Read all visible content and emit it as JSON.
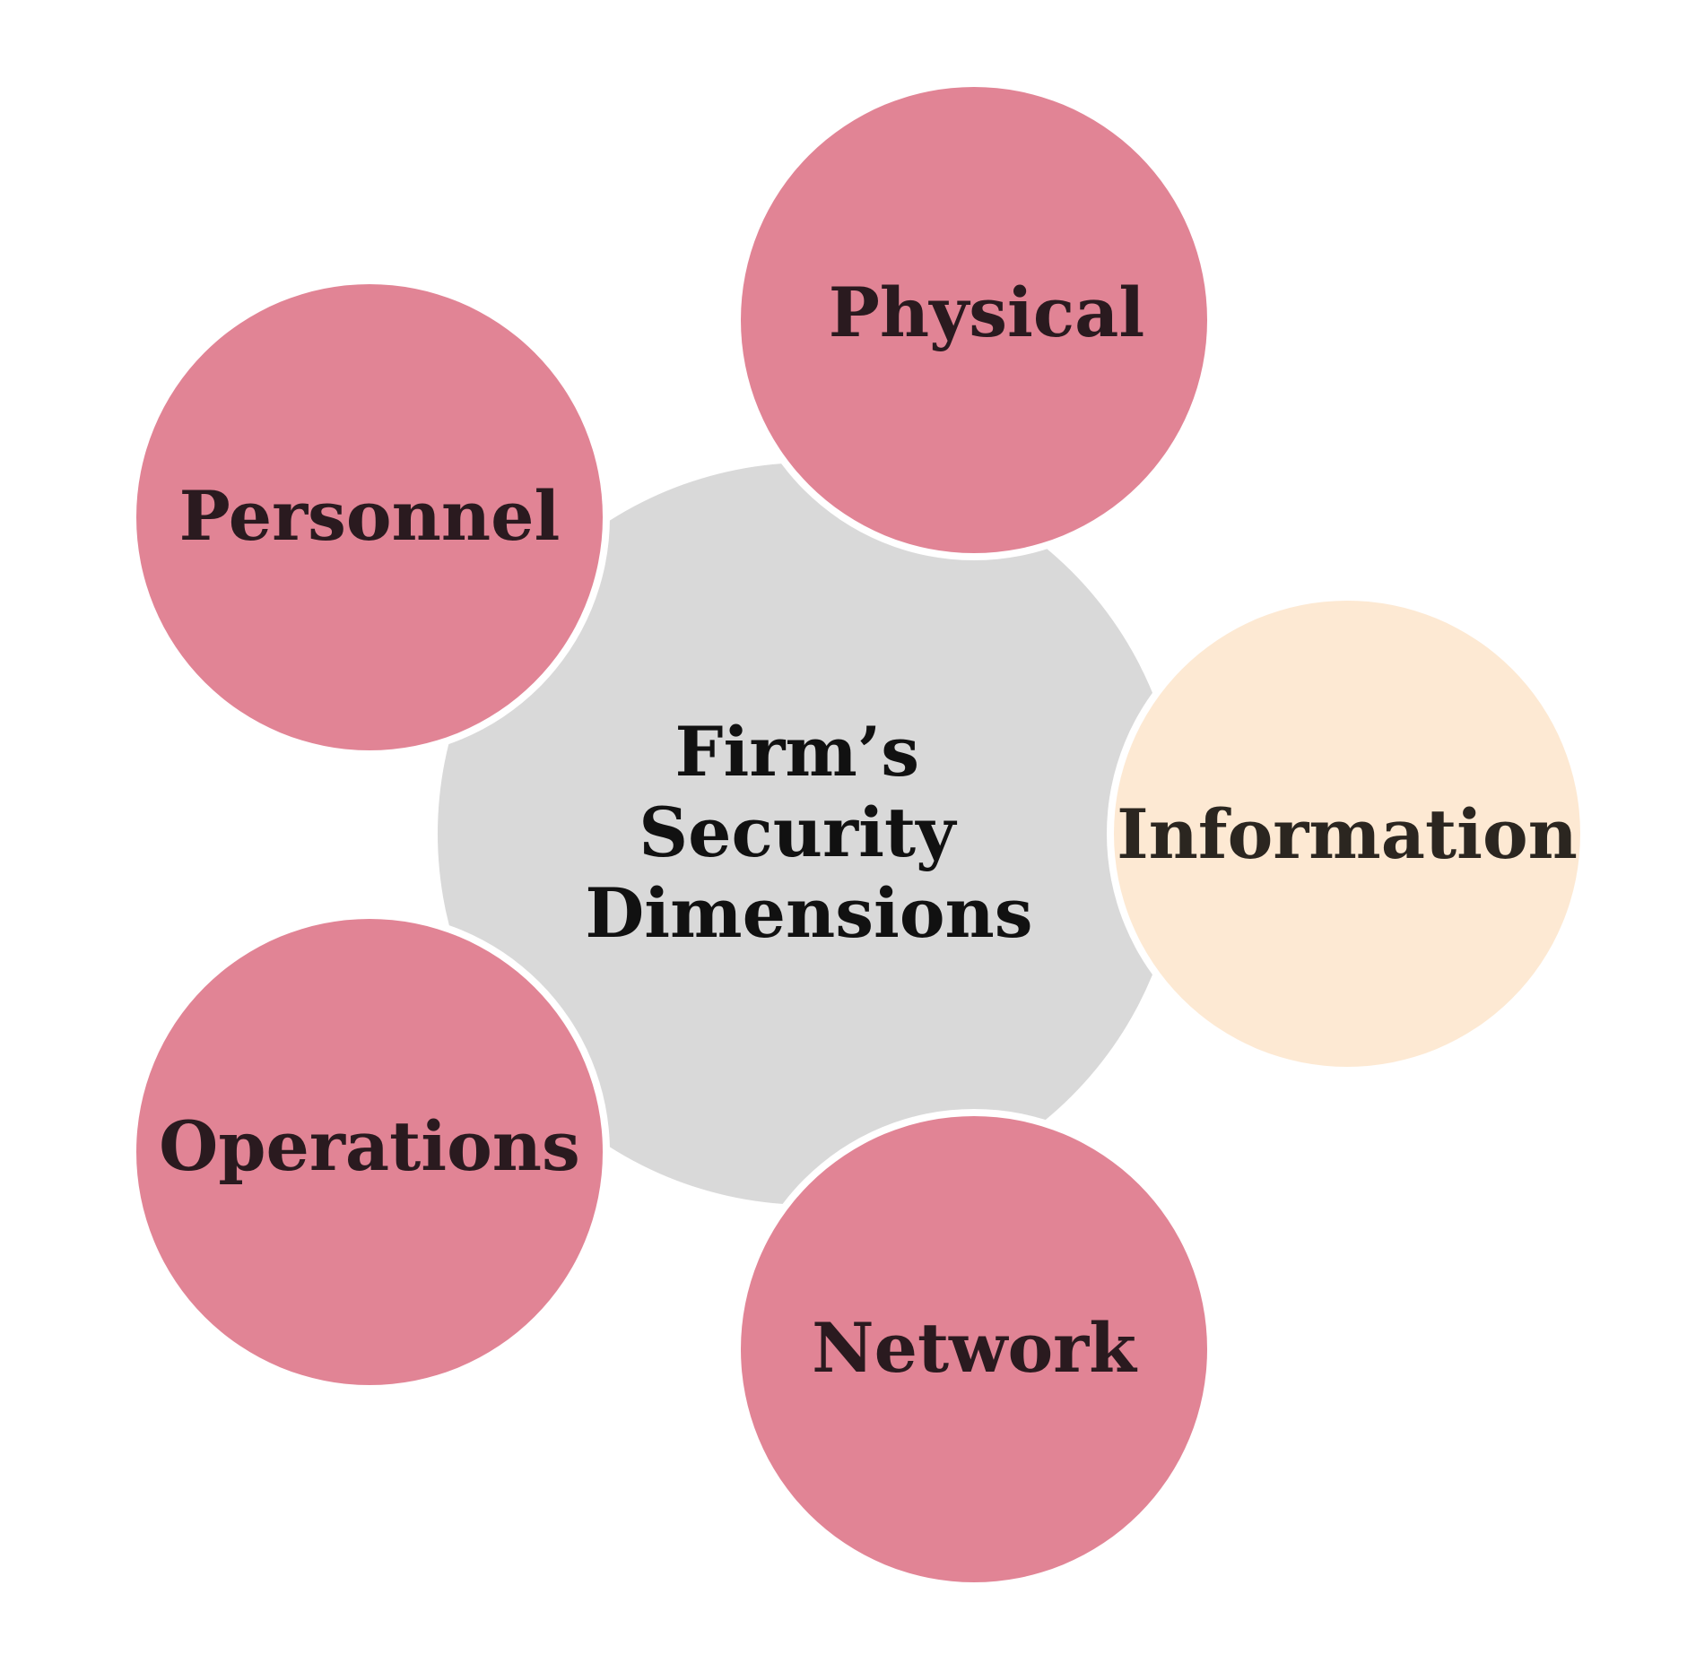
{
  "diagram": {
    "center": {
      "lines": [
        "Firm’s",
        "Security",
        "Dimensions"
      ],
      "fill": "#d9d9d9",
      "text_color": "#111111"
    },
    "satellites": [
      {
        "name": "physical",
        "label": "Physical",
        "fill": "#d9657a",
        "text_color": "#2a1a1f"
      },
      {
        "name": "personnel",
        "label": "Personnel",
        "fill": "#d9657a",
        "text_color": "#2a1a1f"
      },
      {
        "name": "information",
        "label": "Information",
        "fill": "#fde3c8",
        "text_color": "#2b2620"
      },
      {
        "name": "operations",
        "label": "Operations",
        "fill": "#d9657a",
        "text_color": "#2a1a1f"
      },
      {
        "name": "network",
        "label": "Network",
        "fill": "#d9657a",
        "text_color": "#2a1a1f"
      }
    ],
    "outline_color": "#ffffff"
  }
}
